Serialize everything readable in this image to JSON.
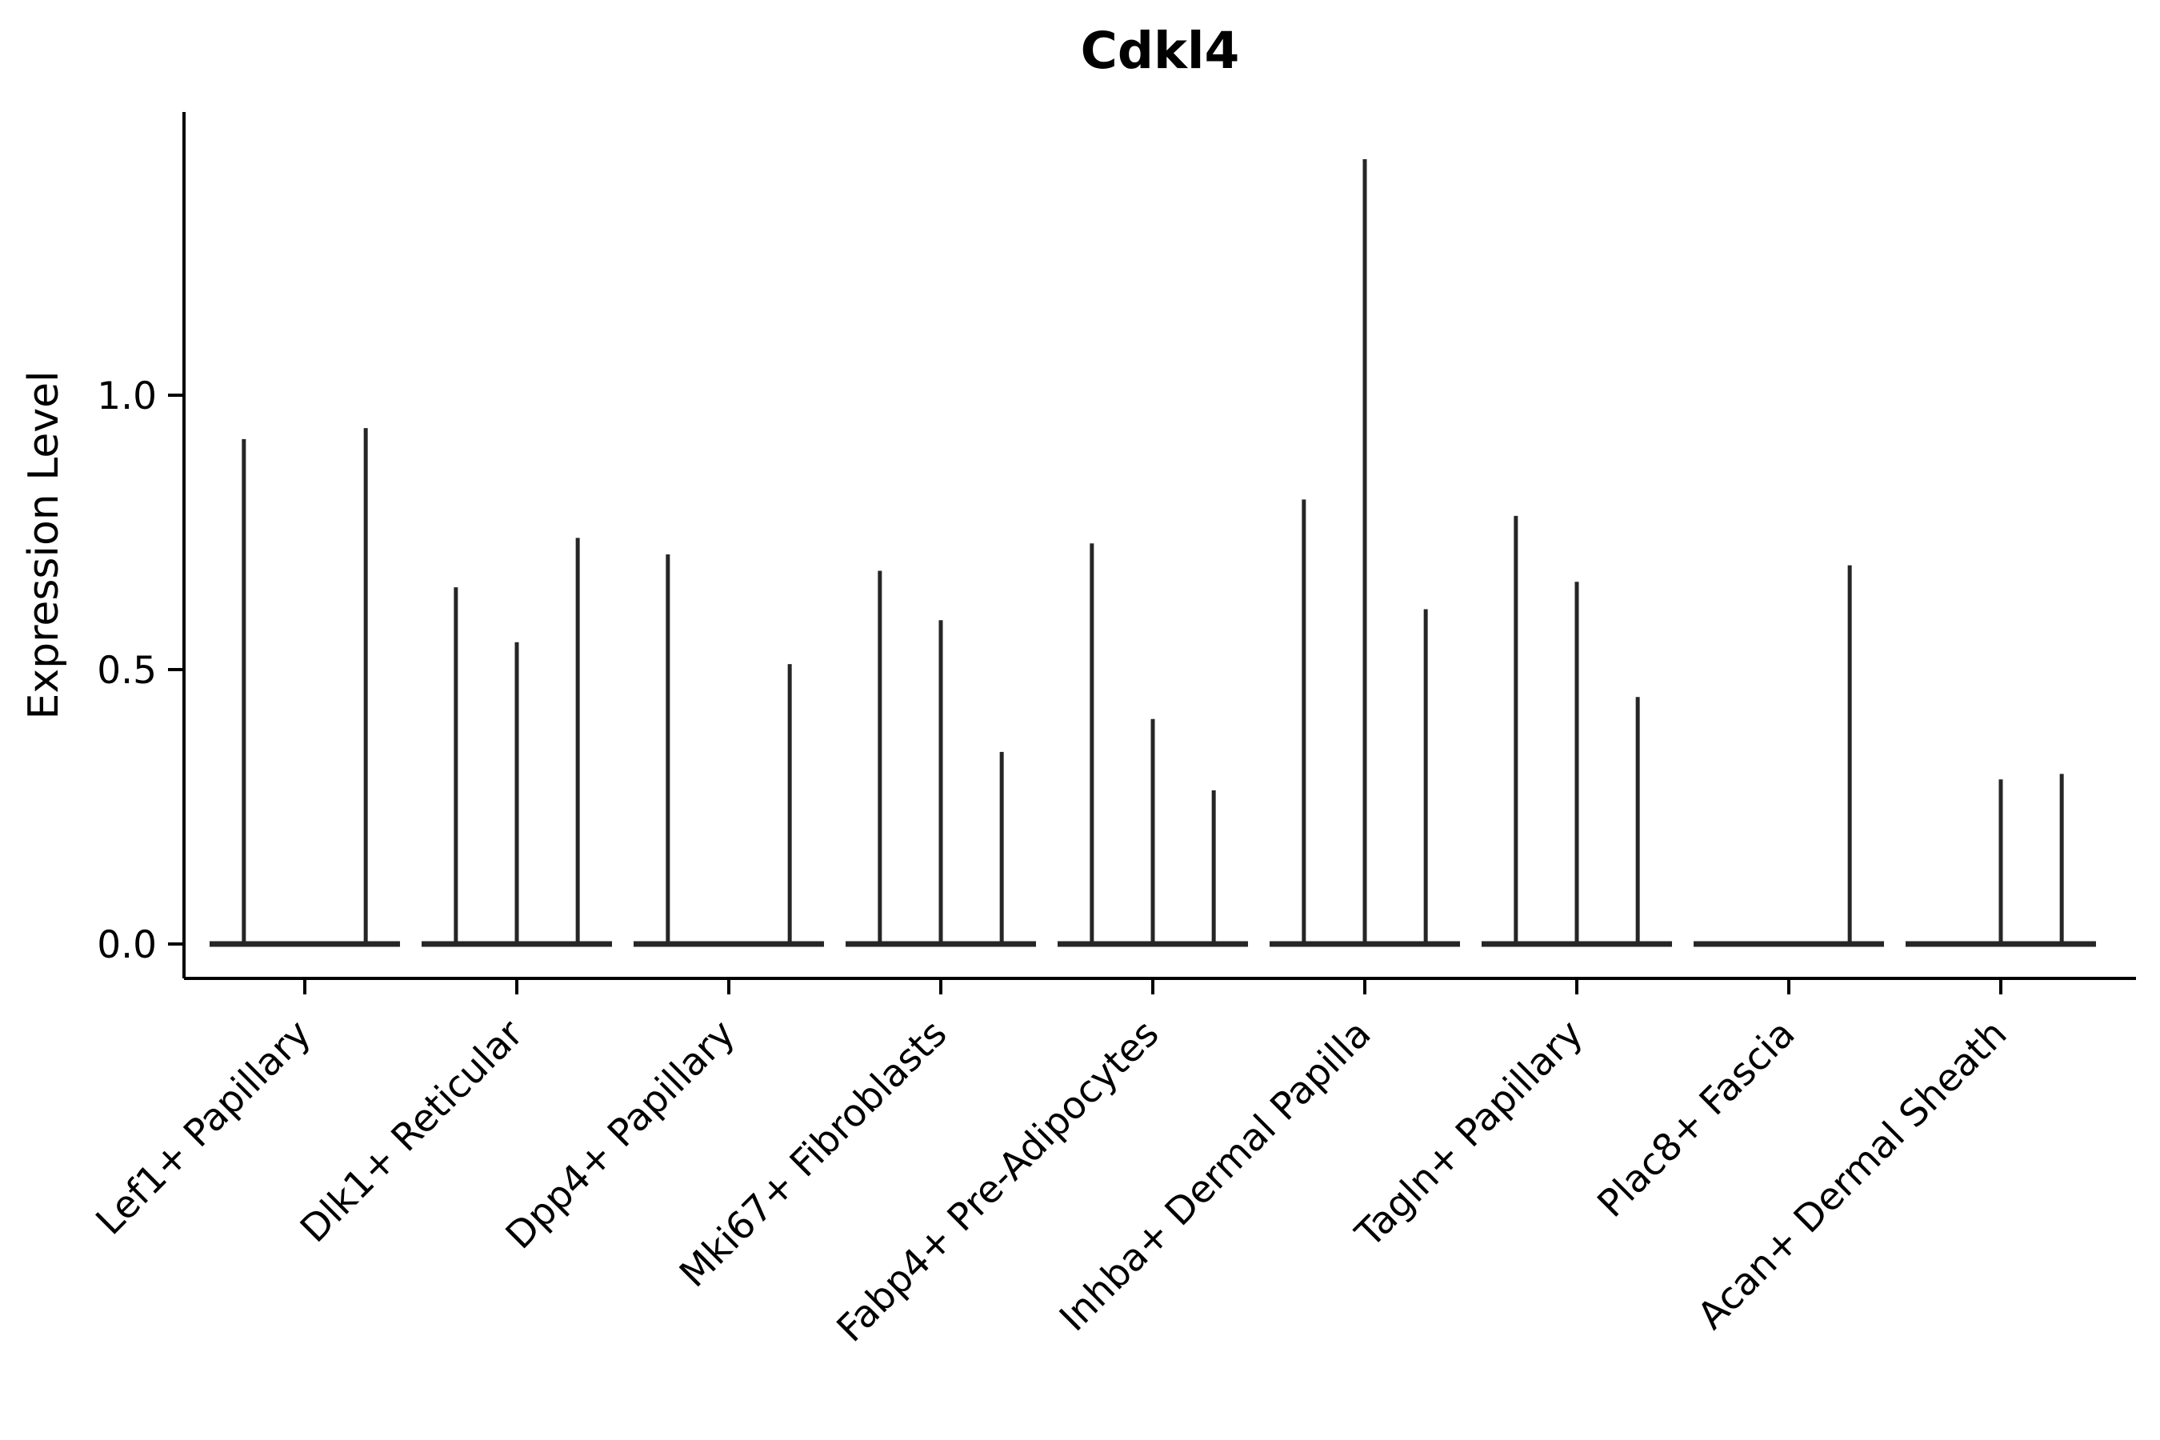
{
  "chart_data": {
    "type": "violin",
    "title": "Cdkl4",
    "ylabel": "Expression Level",
    "xlabel": "",
    "grid": false,
    "legend": "none",
    "ylim": [
      -0.06,
      1.52
    ],
    "yticks": [
      {
        "value": 0.0,
        "label": "0.0"
      },
      {
        "value": 0.5,
        "label": "0.5"
      },
      {
        "value": 1.0,
        "label": "1.0"
      }
    ],
    "violins_per_category": 3,
    "categories": [
      {
        "label": "Lef1+ Papillary",
        "peak_heights": [
          0.92,
          0,
          0.94
        ]
      },
      {
        "label": "Dlk1+ Reticular",
        "peak_heights": [
          0.65,
          0.55,
          0.74
        ]
      },
      {
        "label": "Dpp4+ Papillary",
        "peak_heights": [
          0.71,
          0,
          0.51
        ]
      },
      {
        "label": "Mki67+ Fibroblasts",
        "peak_heights": [
          0.68,
          0.59,
          0.35
        ]
      },
      {
        "label": "Fabp4+ Pre-Adipocytes",
        "peak_heights": [
          0.73,
          0.41,
          0.28
        ]
      },
      {
        "label": "Inhba+ Dermal Papilla",
        "peak_heights": [
          0.81,
          1.43,
          0.61
        ]
      },
      {
        "label": "Tagln+ Papillary",
        "peak_heights": [
          0.78,
          0.66,
          0.45
        ]
      },
      {
        "label": "Plac8+ Fascia",
        "peak_heights": [
          0,
          0,
          0.69
        ]
      },
      {
        "label": "Acan+ Dermal Sheath",
        "peak_heights": [
          0,
          0.3,
          0.31
        ]
      }
    ],
    "colors": {
      "violin": "#262626",
      "axis": "#000000",
      "text": "#000000",
      "background": "#ffffff"
    }
  }
}
